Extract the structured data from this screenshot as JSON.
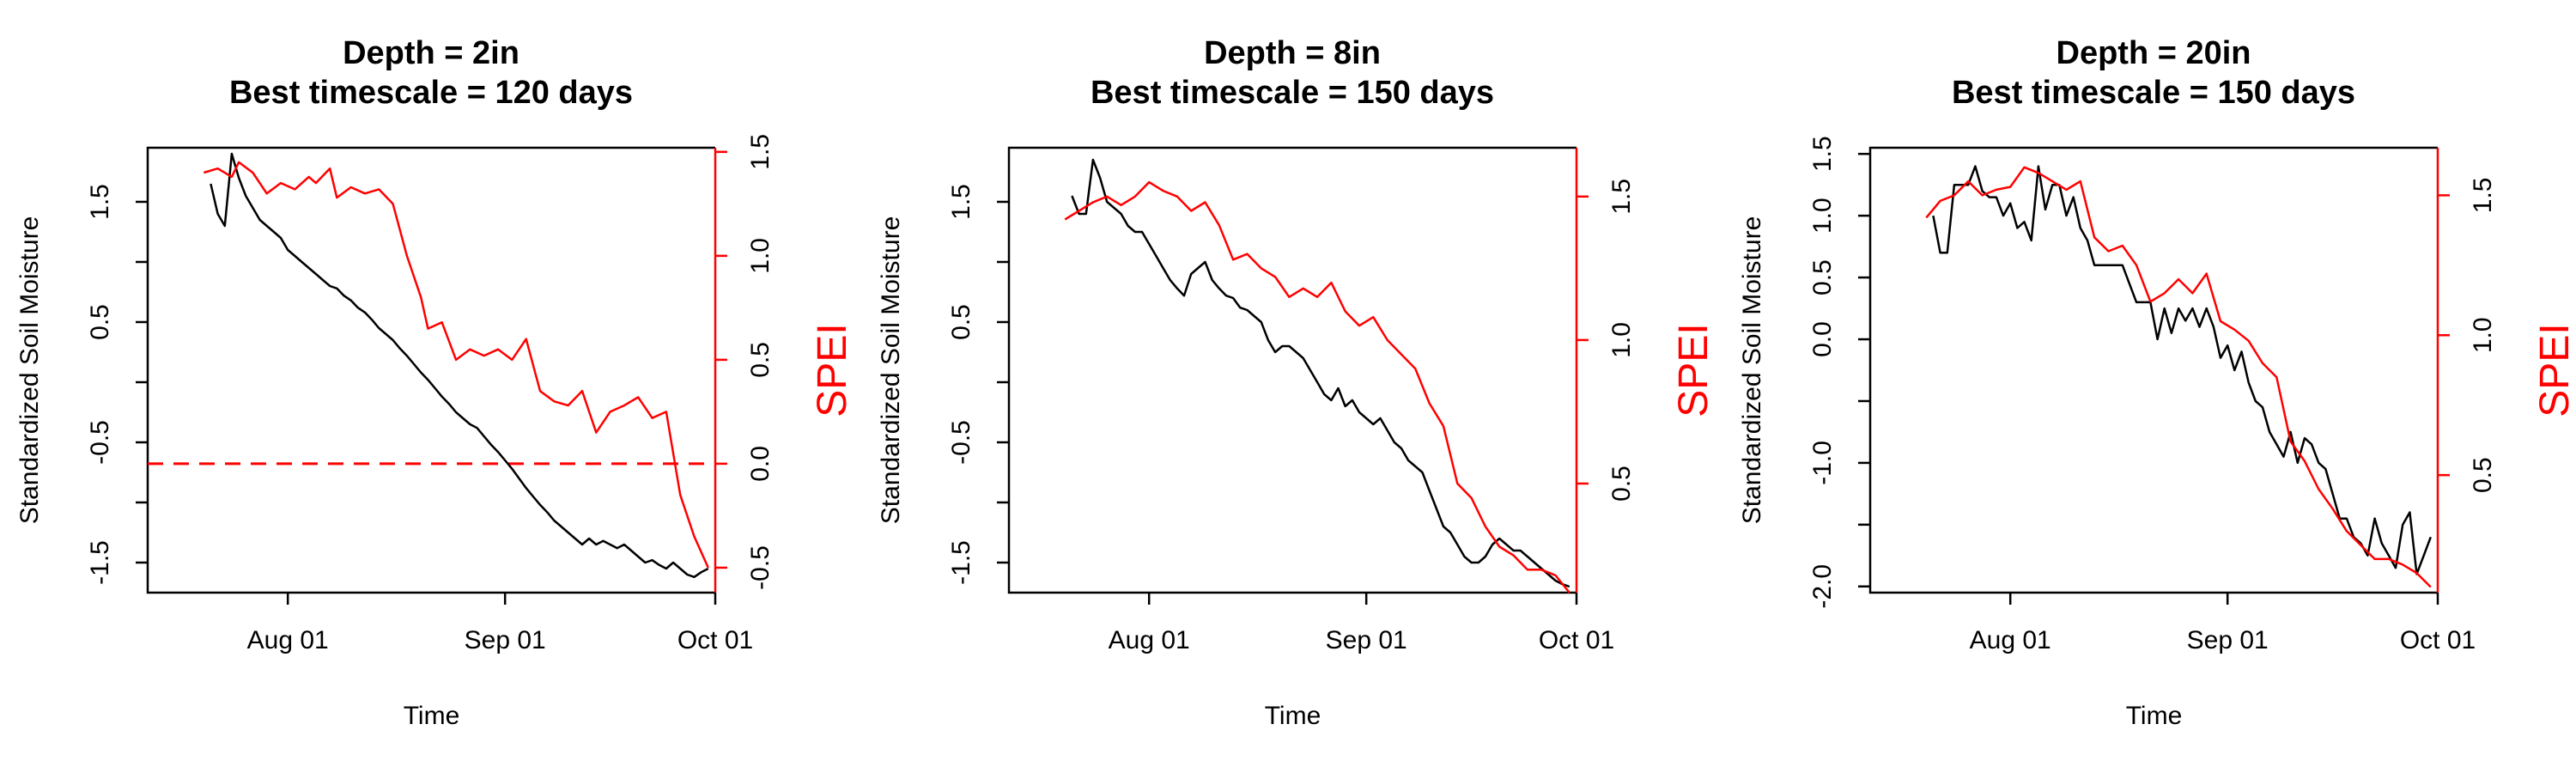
{
  "colors": {
    "soil": "#000000",
    "spei": "#ff0000",
    "background": "#ffffff"
  },
  "x_ticks": {
    "labels": [
      "Aug 01",
      "Sep 01",
      "Oct 01"
    ],
    "dates": [
      "2023-08-01",
      "2023-09-01",
      "2023-10-01"
    ]
  },
  "chart_data": [
    {
      "type": "line",
      "title_line1": "Depth = 2in",
      "title_line2": "Best timescale = 120 days",
      "xlabel": "Time",
      "ylabel_left": "Standardized Soil Moisture",
      "ylabel_right": "SPEI",
      "x_range": [
        "2023-07-12",
        "2023-10-01"
      ],
      "ylim_left": [
        -1.75,
        1.95
      ],
      "ylim_right": [
        -0.62,
        1.52
      ],
      "yticks_left": [
        -1.5,
        -1.0,
        -0.5,
        0.0,
        0.5,
        1.0,
        1.5
      ],
      "yticks_left_labels": [
        "-1.5",
        "",
        "-0.5",
        "",
        "0.5",
        "",
        "1.5"
      ],
      "yticks_right": [
        -0.5,
        0.0,
        0.5,
        1.0,
        1.5
      ],
      "yticks_right_labels": [
        "-0.5",
        "0.0",
        "0.5",
        "1.0",
        "1.5"
      ],
      "reference_line": {
        "axis": "right",
        "value": 0.0,
        "style": "dashed"
      },
      "series": [
        {
          "axis": "left",
          "x": [
            "2023-07-21",
            "2023-07-22",
            "2023-07-23",
            "2023-07-24",
            "2023-07-25",
            "2023-07-26",
            "2023-07-27",
            "2023-07-28",
            "2023-07-29",
            "2023-07-30",
            "2023-07-31",
            "2023-08-01",
            "2023-08-02",
            "2023-08-03",
            "2023-08-04",
            "2023-08-05",
            "2023-08-06",
            "2023-08-07",
            "2023-08-08",
            "2023-08-09",
            "2023-08-10",
            "2023-08-11",
            "2023-08-12",
            "2023-08-13",
            "2023-08-14",
            "2023-08-15",
            "2023-08-16",
            "2023-08-17",
            "2023-08-18",
            "2023-08-19",
            "2023-08-20",
            "2023-08-21",
            "2023-08-22",
            "2023-08-23",
            "2023-08-24",
            "2023-08-25",
            "2023-08-26",
            "2023-08-27",
            "2023-08-28",
            "2023-08-29",
            "2023-08-30",
            "2023-08-31",
            "2023-09-01",
            "2023-09-02",
            "2023-09-03",
            "2023-09-04",
            "2023-09-05",
            "2023-09-06",
            "2023-09-07",
            "2023-09-08",
            "2023-09-09",
            "2023-09-10",
            "2023-09-11",
            "2023-09-12",
            "2023-09-13",
            "2023-09-14",
            "2023-09-15",
            "2023-09-16",
            "2023-09-17",
            "2023-09-18",
            "2023-09-19",
            "2023-09-20",
            "2023-09-21",
            "2023-09-22",
            "2023-09-23",
            "2023-09-24",
            "2023-09-25",
            "2023-09-26",
            "2023-09-27",
            "2023-09-28",
            "2023-09-29",
            "2023-09-30"
          ],
          "values": [
            1.65,
            1.4,
            1.3,
            1.9,
            1.7,
            1.55,
            1.45,
            1.35,
            1.3,
            1.25,
            1.2,
            1.1,
            1.05,
            1.0,
            0.95,
            0.9,
            0.85,
            0.8,
            0.78,
            0.72,
            0.68,
            0.62,
            0.58,
            0.52,
            0.45,
            0.4,
            0.35,
            0.28,
            0.22,
            0.15,
            0.08,
            0.02,
            -0.05,
            -0.12,
            -0.18,
            -0.25,
            -0.3,
            -0.35,
            -0.38,
            -0.45,
            -0.52,
            -0.58,
            -0.65,
            -0.72,
            -0.8,
            -0.88,
            -0.95,
            -1.02,
            -1.08,
            -1.15,
            -1.2,
            -1.25,
            -1.3,
            -1.35,
            -1.3,
            -1.35,
            -1.32,
            -1.35,
            -1.38,
            -1.35,
            -1.4,
            -1.45,
            -1.5,
            -1.48,
            -1.52,
            -1.55,
            -1.5,
            -1.55,
            -1.6,
            -1.62,
            -1.58,
            -1.55
          ]
        },
        {
          "axis": "right",
          "x": [
            "2023-07-20",
            "2023-07-22",
            "2023-07-24",
            "2023-07-25",
            "2023-07-27",
            "2023-07-29",
            "2023-07-31",
            "2023-08-02",
            "2023-08-04",
            "2023-08-05",
            "2023-08-07",
            "2023-08-08",
            "2023-08-10",
            "2023-08-12",
            "2023-08-14",
            "2023-08-16",
            "2023-08-18",
            "2023-08-20",
            "2023-08-21",
            "2023-08-23",
            "2023-08-25",
            "2023-08-27",
            "2023-08-29",
            "2023-08-31",
            "2023-09-02",
            "2023-09-04",
            "2023-09-06",
            "2023-09-08",
            "2023-09-10",
            "2023-09-12",
            "2023-09-14",
            "2023-09-16",
            "2023-09-18",
            "2023-09-20",
            "2023-09-22",
            "2023-09-24",
            "2023-09-26",
            "2023-09-28",
            "2023-09-30"
          ],
          "values": [
            1.4,
            1.42,
            1.38,
            1.45,
            1.4,
            1.3,
            1.35,
            1.32,
            1.38,
            1.35,
            1.42,
            1.28,
            1.33,
            1.3,
            1.32,
            1.25,
            1.0,
            0.8,
            0.65,
            0.68,
            0.5,
            0.55,
            0.52,
            0.55,
            0.5,
            0.6,
            0.35,
            0.3,
            0.28,
            0.35,
            0.15,
            0.25,
            0.28,
            0.32,
            0.22,
            0.25,
            -0.15,
            -0.35,
            -0.5
          ]
        }
      ]
    },
    {
      "type": "line",
      "title_line1": "Depth = 8in",
      "title_line2": "Best timescale = 150 days",
      "xlabel": "Time",
      "ylabel_left": "Standardized Soil Moisture",
      "ylabel_right": "SPEI",
      "x_range": [
        "2023-07-12",
        "2023-10-01"
      ],
      "ylim_left": [
        -1.75,
        1.95
      ],
      "ylim_right": [
        0.12,
        1.67
      ],
      "yticks_left": [
        -1.5,
        -1.0,
        -0.5,
        0.0,
        0.5,
        1.0,
        1.5
      ],
      "yticks_left_labels": [
        "-1.5",
        "",
        "-0.5",
        "",
        "0.5",
        "",
        "1.5"
      ],
      "yticks_right": [
        0.5,
        1.0,
        1.5
      ],
      "yticks_right_labels": [
        "0.5",
        "1.0",
        "1.5"
      ],
      "series": [
        {
          "axis": "left",
          "x": [
            "2023-07-21",
            "2023-07-22",
            "2023-07-23",
            "2023-07-24",
            "2023-07-25",
            "2023-07-26",
            "2023-07-27",
            "2023-07-28",
            "2023-07-29",
            "2023-07-30",
            "2023-07-31",
            "2023-08-01",
            "2023-08-02",
            "2023-08-03",
            "2023-08-04",
            "2023-08-05",
            "2023-08-06",
            "2023-08-07",
            "2023-08-08",
            "2023-08-09",
            "2023-08-10",
            "2023-08-11",
            "2023-08-12",
            "2023-08-13",
            "2023-08-14",
            "2023-08-15",
            "2023-08-16",
            "2023-08-17",
            "2023-08-18",
            "2023-08-19",
            "2023-08-20",
            "2023-08-21",
            "2023-08-22",
            "2023-08-23",
            "2023-08-24",
            "2023-08-25",
            "2023-08-26",
            "2023-08-27",
            "2023-08-28",
            "2023-08-29",
            "2023-08-30",
            "2023-08-31",
            "2023-09-01",
            "2023-09-02",
            "2023-09-03",
            "2023-09-04",
            "2023-09-05",
            "2023-09-06",
            "2023-09-07",
            "2023-09-08",
            "2023-09-09",
            "2023-09-10",
            "2023-09-11",
            "2023-09-12",
            "2023-09-13",
            "2023-09-14",
            "2023-09-15",
            "2023-09-16",
            "2023-09-17",
            "2023-09-18",
            "2023-09-19",
            "2023-09-20",
            "2023-09-21",
            "2023-09-22",
            "2023-09-23",
            "2023-09-24",
            "2023-09-25",
            "2023-09-26",
            "2023-09-27",
            "2023-09-28",
            "2023-09-29",
            "2023-09-30"
          ],
          "values": [
            1.55,
            1.4,
            1.4,
            1.85,
            1.7,
            1.5,
            1.45,
            1.4,
            1.3,
            1.25,
            1.25,
            1.15,
            1.05,
            0.95,
            0.85,
            0.78,
            0.72,
            0.9,
            0.95,
            1.0,
            0.85,
            0.78,
            0.72,
            0.7,
            0.62,
            0.6,
            0.55,
            0.5,
            0.35,
            0.25,
            0.3,
            0.3,
            0.25,
            0.2,
            0.1,
            0.0,
            -0.1,
            -0.15,
            -0.05,
            -0.2,
            -0.15,
            -0.25,
            -0.3,
            -0.35,
            -0.3,
            -0.4,
            -0.5,
            -0.55,
            -0.65,
            -0.7,
            -0.75,
            -0.9,
            -1.05,
            -1.2,
            -1.25,
            -1.35,
            -1.45,
            -1.5,
            -1.5,
            -1.45,
            -1.35,
            -1.3,
            -1.35,
            -1.4,
            -1.4,
            -1.45,
            -1.5,
            -1.55,
            -1.6,
            -1.65,
            -1.68,
            -1.7
          ]
        },
        {
          "axis": "right",
          "x": [
            "2023-07-20",
            "2023-07-22",
            "2023-07-24",
            "2023-07-26",
            "2023-07-28",
            "2023-07-30",
            "2023-08-01",
            "2023-08-03",
            "2023-08-05",
            "2023-08-07",
            "2023-08-09",
            "2023-08-11",
            "2023-08-13",
            "2023-08-15",
            "2023-08-17",
            "2023-08-19",
            "2023-08-21",
            "2023-08-23",
            "2023-08-25",
            "2023-08-27",
            "2023-08-29",
            "2023-08-31",
            "2023-09-02",
            "2023-09-04",
            "2023-09-06",
            "2023-09-08",
            "2023-09-10",
            "2023-09-12",
            "2023-09-14",
            "2023-09-16",
            "2023-09-18",
            "2023-09-20",
            "2023-09-22",
            "2023-09-24",
            "2023-09-26",
            "2023-09-28",
            "2023-09-30"
          ],
          "values": [
            1.42,
            1.45,
            1.48,
            1.5,
            1.47,
            1.5,
            1.55,
            1.52,
            1.5,
            1.45,
            1.48,
            1.4,
            1.28,
            1.3,
            1.25,
            1.22,
            1.15,
            1.18,
            1.15,
            1.2,
            1.1,
            1.05,
            1.08,
            1.0,
            0.95,
            0.9,
            0.78,
            0.7,
            0.5,
            0.45,
            0.35,
            0.28,
            0.25,
            0.2,
            0.2,
            0.18,
            0.12
          ]
        }
      ]
    },
    {
      "type": "line",
      "title_line1": "Depth = 20in",
      "title_line2": "Best timescale = 150 days",
      "xlabel": "Time",
      "ylabel_left": "Standardized Soil Moisture",
      "ylabel_right": "SPEI",
      "x_range": [
        "2023-07-12",
        "2023-10-01"
      ],
      "ylim_left": [
        -2.05,
        1.55
      ],
      "ylim_right": [
        0.08,
        1.67
      ],
      "yticks_left": [
        -2.0,
        -1.5,
        -1.0,
        -0.5,
        0.0,
        0.5,
        1.0,
        1.5
      ],
      "yticks_left_labels": [
        "-2.0",
        "",
        "-1.0",
        "",
        "0.0",
        "0.5",
        "1.0",
        "1.5"
      ],
      "yticks_right": [
        0.5,
        1.0,
        1.5
      ],
      "yticks_right_labels": [
        "0.5",
        "1.0",
        "1.5"
      ],
      "series": [
        {
          "axis": "left",
          "x": [
            "2023-07-21",
            "2023-07-22",
            "2023-07-23",
            "2023-07-24",
            "2023-07-25",
            "2023-07-26",
            "2023-07-27",
            "2023-07-28",
            "2023-07-29",
            "2023-07-30",
            "2023-07-31",
            "2023-08-01",
            "2023-08-02",
            "2023-08-03",
            "2023-08-04",
            "2023-08-05",
            "2023-08-06",
            "2023-08-07",
            "2023-08-08",
            "2023-08-09",
            "2023-08-10",
            "2023-08-11",
            "2023-08-12",
            "2023-08-13",
            "2023-08-14",
            "2023-08-15",
            "2023-08-16",
            "2023-08-17",
            "2023-08-18",
            "2023-08-19",
            "2023-08-20",
            "2023-08-21",
            "2023-08-22",
            "2023-08-23",
            "2023-08-24",
            "2023-08-25",
            "2023-08-26",
            "2023-08-27",
            "2023-08-28",
            "2023-08-29",
            "2023-08-30",
            "2023-08-31",
            "2023-09-01",
            "2023-09-02",
            "2023-09-03",
            "2023-09-04",
            "2023-09-05",
            "2023-09-06",
            "2023-09-07",
            "2023-09-08",
            "2023-09-09",
            "2023-09-10",
            "2023-09-11",
            "2023-09-12",
            "2023-09-13",
            "2023-09-14",
            "2023-09-15",
            "2023-09-16",
            "2023-09-17",
            "2023-09-18",
            "2023-09-19",
            "2023-09-20",
            "2023-09-21",
            "2023-09-22",
            "2023-09-23",
            "2023-09-24",
            "2023-09-25",
            "2023-09-26",
            "2023-09-27",
            "2023-09-28",
            "2023-09-29",
            "2023-09-30"
          ],
          "values": [
            1.0,
            0.7,
            0.7,
            1.25,
            1.25,
            1.25,
            1.4,
            1.2,
            1.15,
            1.15,
            1.0,
            1.1,
            0.9,
            0.95,
            0.8,
            1.4,
            1.05,
            1.25,
            1.25,
            1.0,
            1.15,
            0.9,
            0.8,
            0.6,
            0.6,
            0.6,
            0.6,
            0.6,
            0.45,
            0.3,
            0.3,
            0.3,
            0.0,
            0.25,
            0.05,
            0.25,
            0.15,
            0.25,
            0.1,
            0.25,
            0.1,
            -0.15,
            -0.05,
            -0.25,
            -0.1,
            -0.35,
            -0.5,
            -0.55,
            -0.75,
            -0.85,
            -0.95,
            -0.75,
            -1.0,
            -0.8,
            -0.85,
            -1.0,
            -1.05,
            -1.25,
            -1.45,
            -1.45,
            -1.6,
            -1.65,
            -1.75,
            -1.45,
            -1.65,
            -1.75,
            -1.85,
            -1.5,
            -1.4,
            -1.9,
            -1.75,
            -1.6
          ]
        },
        {
          "axis": "right",
          "x": [
            "2023-07-20",
            "2023-07-22",
            "2023-07-24",
            "2023-07-26",
            "2023-07-28",
            "2023-07-30",
            "2023-08-01",
            "2023-08-03",
            "2023-08-05",
            "2023-08-07",
            "2023-08-09",
            "2023-08-11",
            "2023-08-13",
            "2023-08-15",
            "2023-08-17",
            "2023-08-19",
            "2023-08-21",
            "2023-08-23",
            "2023-08-25",
            "2023-08-27",
            "2023-08-29",
            "2023-08-31",
            "2023-09-02",
            "2023-09-04",
            "2023-09-06",
            "2023-09-08",
            "2023-09-10",
            "2023-09-12",
            "2023-09-14",
            "2023-09-16",
            "2023-09-18",
            "2023-09-20",
            "2023-09-22",
            "2023-09-24",
            "2023-09-26",
            "2023-09-28",
            "2023-09-30"
          ],
          "values": [
            1.42,
            1.48,
            1.5,
            1.55,
            1.5,
            1.52,
            1.53,
            1.6,
            1.58,
            1.55,
            1.52,
            1.55,
            1.35,
            1.3,
            1.32,
            1.25,
            1.12,
            1.15,
            1.2,
            1.15,
            1.22,
            1.05,
            1.02,
            0.98,
            0.9,
            0.85,
            0.62,
            0.55,
            0.45,
            0.38,
            0.3,
            0.25,
            0.2,
            0.2,
            0.18,
            0.15,
            0.1
          ]
        }
      ]
    }
  ]
}
